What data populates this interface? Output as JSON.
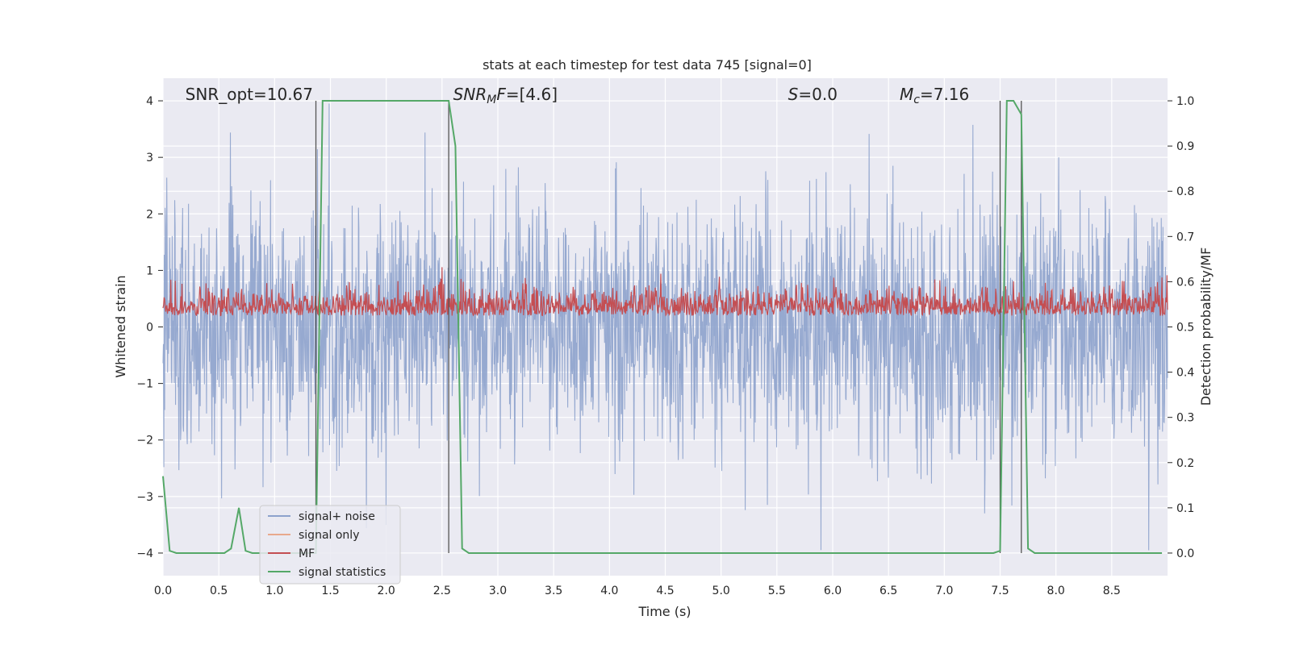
{
  "chart_data": {
    "type": "line",
    "title": "stats at each timestep for test data 745 [signal=0]",
    "xlabel": "Time (s)",
    "ylabel_left": "Whitened strain",
    "ylabel_right": "Detection probability/MF",
    "xlim": [
      0.0,
      9.0
    ],
    "ylim_left": [
      -4.4,
      4.4
    ],
    "ylim_right": [
      -0.05,
      1.05
    ],
    "x_ticks": [
      "0.0",
      "0.5",
      "1.0",
      "1.5",
      "2.0",
      "2.5",
      "3.0",
      "3.5",
      "4.0",
      "4.5",
      "5.0",
      "5.5",
      "6.0",
      "6.5",
      "7.0",
      "7.5",
      "8.0",
      "8.5"
    ],
    "y_ticks_left": [
      "−4",
      "−3",
      "−2",
      "−1",
      "0",
      "1",
      "2",
      "3",
      "4"
    ],
    "y_ticks_right": [
      "0.0",
      "0.1",
      "0.2",
      "0.3",
      "0.4",
      "0.5",
      "0.6",
      "0.7",
      "0.8",
      "0.9",
      "1.0"
    ],
    "grid": true,
    "legend_placement": "lower-left",
    "annotations": [
      {
        "text": "SNR_opt=10.67",
        "x": 0.2
      },
      {
        "text": "SNR_MF=[4.6]",
        "x": 2.6
      },
      {
        "text": "S=0.0",
        "x": 5.6
      },
      {
        "text": "M_c=7.16",
        "x": 6.6
      }
    ],
    "vertical_lines_x": [
      1.37,
      2.56,
      7.5,
      7.69
    ],
    "series": [
      {
        "name": "signal+ noise",
        "axis": "left",
        "color": "#8da2cc",
        "description_values": "noise band roughly between -2.5 and 3.0 with spikes to ±3.9",
        "envelope_upper_typical": 2.0,
        "envelope_lower_typical": -2.0
      },
      {
        "name": "signal only",
        "axis": "left",
        "color": "#e8a98c",
        "values": []
      },
      {
        "name": "MF",
        "axis": "right",
        "color": "#c44e52",
        "typical_range": [
          0.5,
          0.62
        ]
      },
      {
        "name": "signal statistics",
        "axis": "right",
        "color": "#55a868",
        "x": [
          0.0,
          0.06,
          0.12,
          0.55,
          0.61,
          0.68,
          0.74,
          0.8,
          1.31,
          1.37,
          1.43,
          2.5,
          2.56,
          2.62,
          2.68,
          2.74,
          7.44,
          7.5,
          7.56,
          7.62,
          7.69,
          7.75,
          7.81,
          8.95
        ],
        "values": [
          0.17,
          0.005,
          0.0,
          0.0,
          0.01,
          0.1,
          0.005,
          0.0,
          0.0,
          0.0,
          1.0,
          1.0,
          1.0,
          0.9,
          0.01,
          0.0,
          0.0,
          0.005,
          1.0,
          1.0,
          0.97,
          0.01,
          0.0,
          0.0
        ]
      }
    ]
  },
  "legend": {
    "items": [
      {
        "label": "signal+ noise",
        "color": "#8da2cc"
      },
      {
        "label": "signal only",
        "color": "#e8a98c"
      },
      {
        "label": "MF",
        "color": "#c44e52"
      },
      {
        "label": "signal statistics",
        "color": "#55a868"
      }
    ]
  },
  "colors": {
    "plot_background": "#eaeaf2",
    "grid": "#ffffff",
    "vertical_line": "#555555"
  }
}
